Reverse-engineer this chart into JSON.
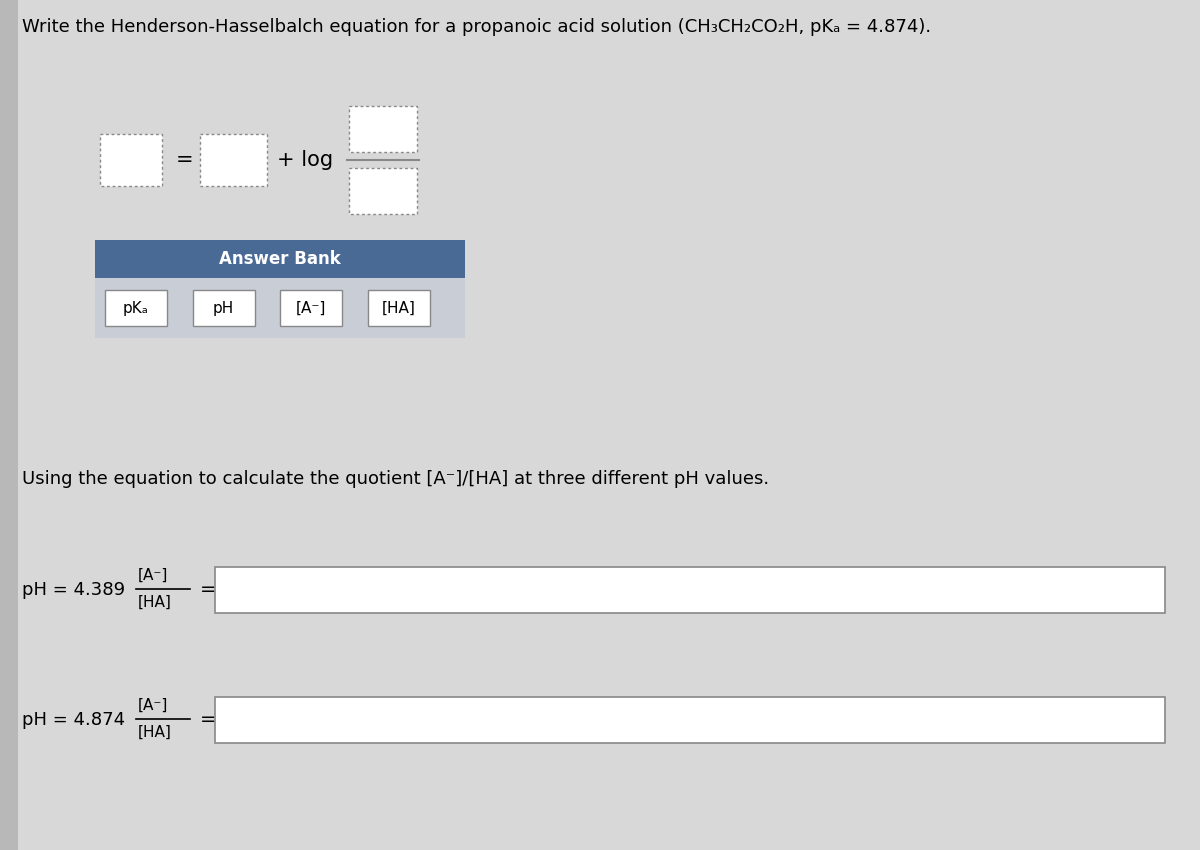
{
  "title_part1": "Write the Henderson-Hasselbalch equation for a propanoic acid solution (CH",
  "title_sub1": "3",
  "title_part2": "CH",
  "title_sub2": "2",
  "title_part3": "CO",
  "title_sub3": "2",
  "title_part4": "H, pK",
  "title_sub4": "a",
  "title_part5": " = 4.874).",
  "title_full": "Write the Henderson-Hasselbalch equation for a propanoic acid solution (CH₃CH₂CO₂H, pKₐ = 4.874).",
  "bg_color": "#d8d8d8",
  "left_strip_color": "#c0c0c0",
  "answer_bank_header_color": "#4a6a96",
  "answer_bank_items_bg": "#c8cdd6",
  "answer_bank_label": "Answer Bank",
  "answer_bank_items": [
    "pKₐ",
    "pH",
    "[A⁻]",
    "[HA]"
  ],
  "equation_label": "Using the equation to calculate the quotient [A⁻]/[HA] at three different pH values.",
  "ph_row1_label": "pH = 4.389",
  "ph_row2_label": "pH = 4.874",
  "fraction_num": "[A⁻]",
  "fraction_den": "[HA]"
}
